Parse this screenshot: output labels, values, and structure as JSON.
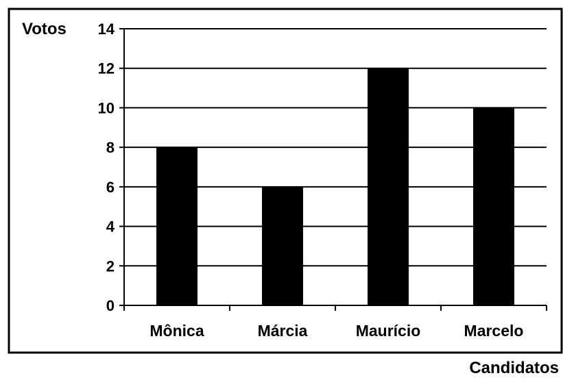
{
  "chart_data": {
    "type": "bar",
    "ylabel": "Votos",
    "xlabel": "Candidatos",
    "categories": [
      "Mônica",
      "Márcia",
      "Maurício",
      "Marcelo"
    ],
    "values": [
      8,
      6,
      12,
      10
    ],
    "ylim": [
      0,
      14
    ],
    "yticks": [
      "0",
      "2",
      "4",
      "6",
      "8",
      "10",
      "12",
      "14"
    ],
    "grid": true,
    "bar_color": "#000000"
  }
}
